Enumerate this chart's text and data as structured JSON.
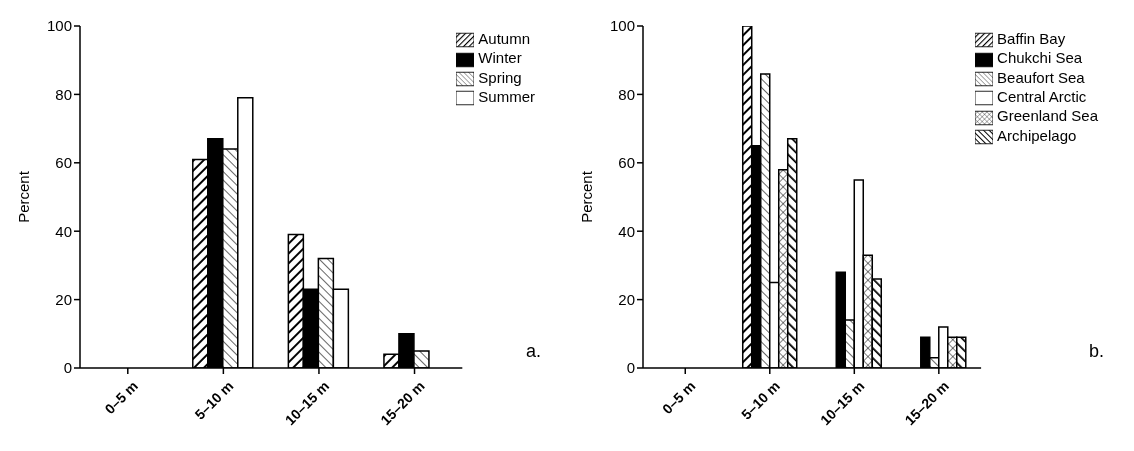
{
  "chart_data": [
    {
      "type": "bar",
      "ylabel": "Percent",
      "categories": [
        "0–5 m",
        "5–10 m",
        "10–15 m",
        "15–20 m"
      ],
      "ylim": [
        0,
        100
      ],
      "yticks": [
        0,
        20,
        40,
        60,
        80,
        100
      ],
      "grid": false,
      "legend": "top right",
      "annotations": [
        "a."
      ],
      "series": [
        {
          "name": "Autumn",
          "color": "#000000",
          "values": [
            0,
            61,
            39,
            4
          ]
        },
        {
          "name": "Winter",
          "color": "#000000",
          "values": [
            0,
            67,
            23,
            10
          ]
        },
        {
          "name": "Spring",
          "color": "#000000",
          "values": [
            0,
            64,
            32,
            5
          ]
        },
        {
          "name": "Summer",
          "color": "#ffffff",
          "values": [
            0,
            79,
            23,
            0
          ]
        }
      ]
    },
    {
      "type": "bar",
      "ylabel": "Percent",
      "categories": [
        "0–5 m",
        "5–10 m",
        "10–15 m",
        "15–20 m"
      ],
      "ylim": [
        0,
        100
      ],
      "yticks": [
        0,
        20,
        40,
        60,
        80,
        100
      ],
      "grid": false,
      "legend": "top right",
      "annotations": [
        "b."
      ],
      "series": [
        {
          "name": "Baffin Bay",
          "color": "#000000",
          "values": [
            0,
            100,
            0,
            0
          ]
        },
        {
          "name": "Chukchi Sea",
          "color": "#000000",
          "values": [
            0,
            65,
            28,
            9
          ]
        },
        {
          "name": "Beaufort Sea",
          "color": "#000000",
          "values": [
            0,
            86,
            14,
            3
          ]
        },
        {
          "name": "Central Arctic",
          "color": "#ffffff",
          "values": [
            0,
            25,
            55,
            12
          ]
        },
        {
          "name": "Greenland Sea",
          "color": "#000000",
          "values": [
            0,
            58,
            33,
            9
          ]
        },
        {
          "name": "Archipelago",
          "color": "#000000",
          "values": [
            0,
            67,
            26,
            9
          ]
        }
      ]
    }
  ]
}
